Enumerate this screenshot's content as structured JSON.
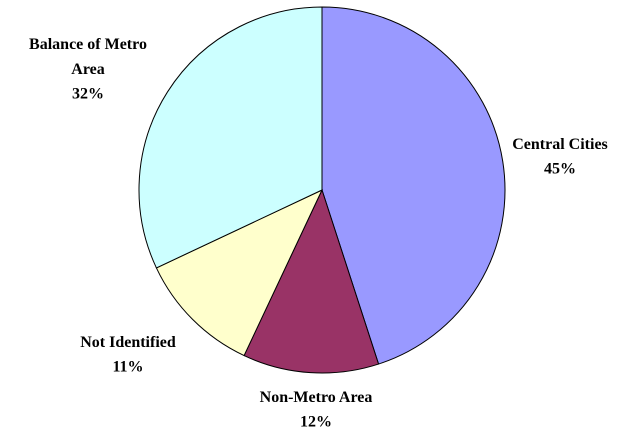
{
  "chart_data": {
    "type": "pie",
    "categories": [
      "Central Cities",
      "Non-Metro Area",
      "Not Identified",
      "Balance of Metro Area"
    ],
    "values": [
      45,
      12,
      11,
      32
    ],
    "value_labels": [
      "45%",
      "12%",
      "11%",
      "32%"
    ],
    "colors": [
      "#9999ff",
      "#993366",
      "#ffffcc",
      "#ccffff"
    ]
  }
}
